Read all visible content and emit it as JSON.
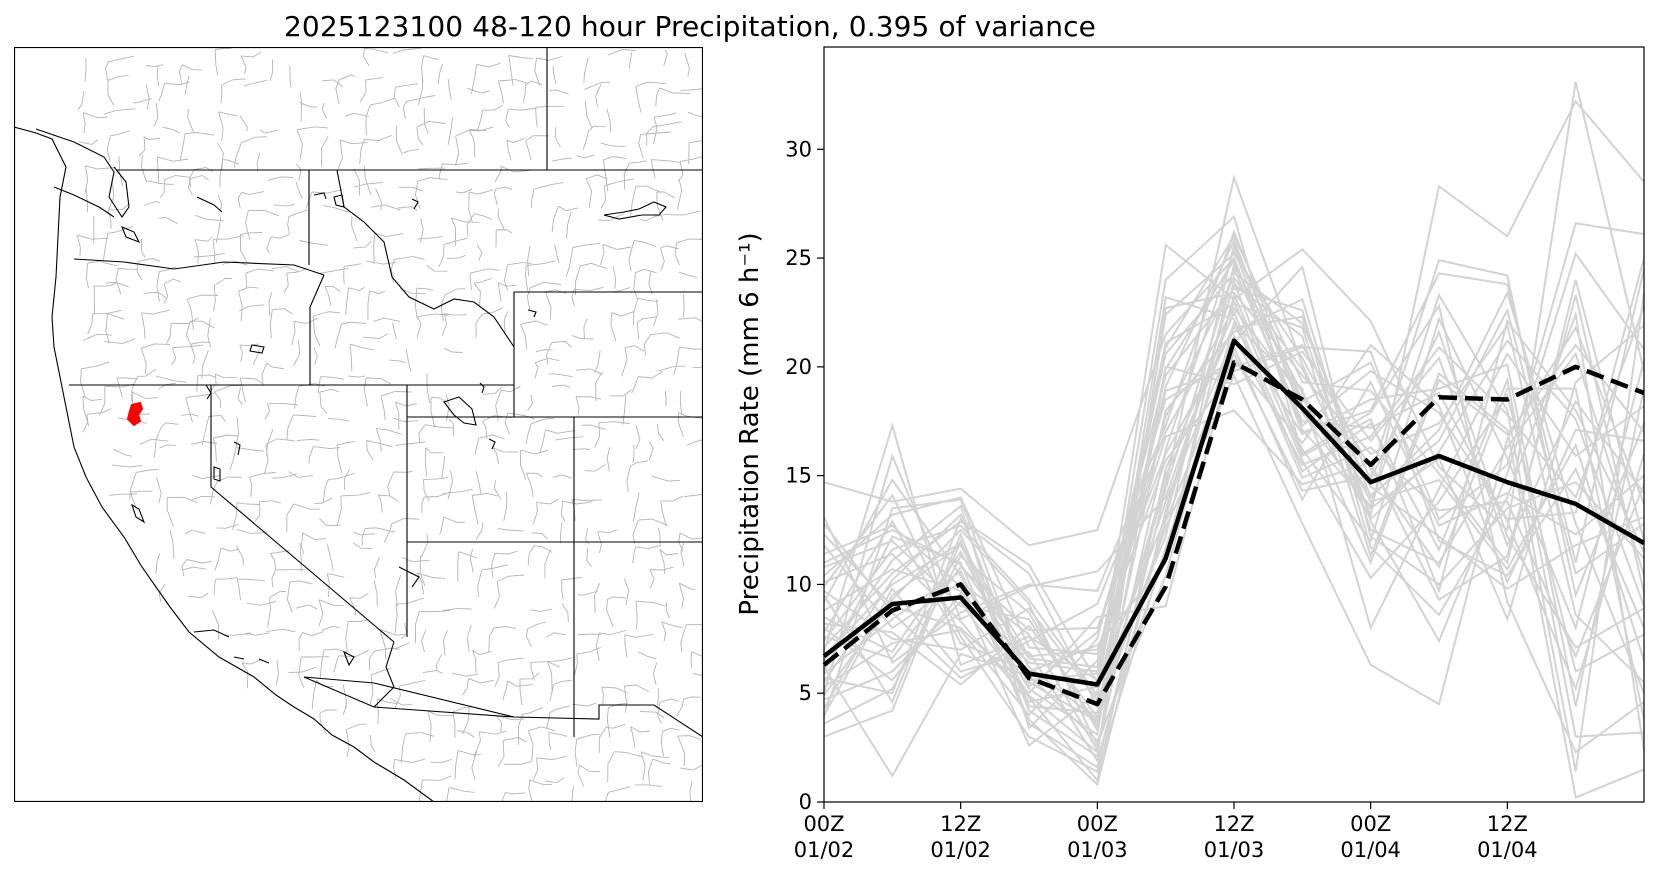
{
  "figure": {
    "title": "2025123100 48-120 hour Precipitation, 0.395 of variance"
  },
  "map": {
    "region": "Western United States",
    "highlight_color": "#ff0000",
    "state_line_color": "#000000",
    "basin_line_color": "#b4b4b4"
  },
  "chart_data": {
    "type": "line",
    "ylabel": "Precipitation Rate (mm 6 h⁻¹)",
    "ylim": [
      0,
      34.7
    ],
    "yticks": [
      0,
      5,
      10,
      15,
      20,
      25,
      30
    ],
    "x": [
      0,
      6,
      12,
      18,
      24,
      30,
      36,
      42,
      48,
      54,
      60,
      66,
      72
    ],
    "xlim": [
      0,
      72
    ],
    "xticks": [
      {
        "x": 0,
        "top": "00Z",
        "bottom": "01/02"
      },
      {
        "x": 12,
        "top": "12Z",
        "bottom": "01/02"
      },
      {
        "x": 24,
        "top": "00Z",
        "bottom": "01/03"
      },
      {
        "x": 36,
        "top": "12Z",
        "bottom": "01/03"
      },
      {
        "x": 48,
        "top": "00Z",
        "bottom": "01/04"
      },
      {
        "x": 60,
        "top": "12Z",
        "bottom": "01/04"
      }
    ],
    "grid": false,
    "series_style": {
      "ensemble_color": "#d3d3d3",
      "mean_color": "#000000",
      "dashed_color": "#000000"
    },
    "series": [
      {
        "style": "solid-thick",
        "values": [
          6.7,
          9.1,
          9.4,
          5.9,
          5.4,
          11.2,
          21.2,
          18.1,
          14.7,
          15.9,
          14.7,
          13.7,
          11.9
        ]
      },
      {
        "style": "dashed-thick",
        "values": [
          6.3,
          8.8,
          10.0,
          5.7,
          4.5,
          9.9,
          20.2,
          18.5,
          15.5,
          18.6,
          18.5,
          20.0,
          18.8
        ]
      }
    ],
    "ensemble": [
      [
        4.0,
        9.5,
        11.8,
        6.2,
        3.8,
        14.6,
        28.7,
        20.1,
        13.2,
        28.3,
        26.0,
        32.2,
        28.5
      ],
      [
        6.9,
        17.3,
        6.3,
        7.6,
        5.6,
        25.6,
        23.1,
        25.4,
        22.1,
        15.4,
        12.5,
        33.1,
        19.8
      ],
      [
        14.7,
        13.8,
        14.4,
        11.8,
        12.5,
        21.5,
        25.0,
        17.0,
        18.0,
        24.3,
        23.8,
        11.0,
        24.5
      ],
      [
        13.1,
        6.4,
        8.7,
        10.0,
        9.7,
        17.3,
        26.2,
        18.4,
        20.2,
        13.0,
        15.5,
        26.6,
        26.1
      ],
      [
        3.0,
        4.2,
        12.0,
        4.2,
        2.1,
        22.7,
        23.4,
        19.6,
        16.0,
        17.4,
        21.9,
        8.6,
        5.5
      ],
      [
        9.9,
        14.1,
        7.6,
        3.0,
        1.4,
        11.7,
        21.1,
        24.6,
        12.2,
        10.0,
        13.5,
        14.7,
        11.2
      ],
      [
        5.5,
        10.2,
        13.2,
        5.3,
        7.8,
        18.5,
        20.3,
        16.5,
        21.0,
        18.2,
        10.1,
        17.1,
        16.6
      ],
      [
        8.2,
        7.8,
        5.4,
        8.1,
        3.9,
        12.6,
        19.6,
        12.8,
        6.3,
        4.5,
        16.7,
        21.8,
        13.7
      ],
      [
        11.0,
        12.5,
        10.9,
        6.6,
        6.2,
        20.6,
        24.3,
        22.0,
        14.8,
        21.6,
        12.2,
        7.1,
        8.9
      ],
      [
        4.7,
        6.0,
        9.2,
        4.8,
        1.0,
        15.3,
        22.5,
        15.2,
        17.4,
        11.6,
        19.4,
        3.0,
        3.2
      ],
      [
        7.4,
        11.6,
        12.7,
        9.3,
        4.9,
        19.1,
        25.8,
        17.9,
        13.5,
        15.8,
        8.4,
        19.3,
        21.9
      ],
      [
        12.3,
        9.0,
        8.0,
        5.0,
        8.5,
        9.0,
        20.9,
        13.9,
        19.3,
        12.7,
        14.2,
        12.3,
        15.0
      ],
      [
        5.9,
        8.4,
        10.6,
        3.8,
        0.8,
        13.4,
        23.8,
        21.4,
        11.3,
        19.7,
        17.1,
        0.2,
        1.5
      ],
      [
        10.4,
        13.2,
        14.0,
        7.1,
        6.8,
        16.8,
        18.0,
        14.6,
        15.6,
        9.3,
        11.3,
        23.3,
        9.6
      ],
      [
        6.2,
        1.2,
        6.8,
        5.8,
        2.8,
        10.4,
        22.0,
        19.0,
        8.0,
        14.4,
        20.6,
        15.9,
        18.2
      ],
      [
        8.8,
        10.7,
        9.7,
        2.6,
        5.0,
        24.0,
        26.9,
        16.0,
        17.9,
        22.8,
        9.2,
        2.3,
        4.6
      ],
      [
        3.6,
        5.2,
        11.3,
        8.7,
        3.3,
        18.0,
        21.6,
        23.1,
        12.9,
        7.4,
        15.1,
        25.2,
        20.8
      ],
      [
        7.8,
        12.9,
        7.3,
        6.0,
        7.2,
        11.0,
        24.7,
        18.8,
        14.1,
        16.6,
        22.6,
        10.5,
        12.8
      ],
      [
        9.5,
        4.6,
        12.3,
        4.4,
        4.1,
        20.0,
        19.2,
        20.7,
        16.6,
        20.4,
        11.8,
        18.4,
        14.2
      ],
      [
        5.0,
        15.9,
        8.4,
        9.9,
        10.6,
        14.0,
        23.0,
        15.7,
        10.3,
        13.8,
        18.7,
        6.0,
        7.7
      ],
      [
        11.8,
        8.0,
        10.1,
        7.7,
        2.4,
        16.2,
        25.4,
        17.3,
        19.8,
        17.9,
        13.0,
        13.3,
        25.0
      ],
      [
        6.5,
        11.1,
        13.6,
        3.4,
        6.5,
        21.1,
        22.9,
        21.8,
        12.5,
        11.0,
        16.3,
        20.6,
        10.4
      ],
      [
        4.3,
        9.8,
        6.0,
        6.9,
        1.9,
        12.9,
        20.6,
        14.3,
        15.0,
        24.9,
        24.2,
        9.5,
        17.4
      ],
      [
        8.5,
        6.9,
        11.5,
        5.6,
        5.9,
        17.7,
        24.1,
        19.9,
        13.8,
        14.8,
        10.7,
        16.4,
        6.5
      ],
      [
        10.8,
        12.0,
        9.0,
        8.4,
        3.5,
        15.0,
        21.9,
        16.9,
        18.5,
        19.0,
        20.1,
        4.4,
        19.0
      ],
      [
        5.3,
        7.3,
        7.9,
        4.0,
        7.5,
        19.6,
        23.6,
        22.6,
        11.7,
        8.6,
        14.0,
        22.4,
        2.4
      ],
      [
        7.1,
        10.5,
        12.9,
        10.5,
        4.4,
        13.8,
        21.4,
        15.5,
        16.8,
        20.9,
        17.8,
        14.0,
        22.8
      ],
      [
        9.2,
        14.8,
        10.4,
        5.2,
        3.1,
        22.4,
        25.2,
        20.4,
        14.5,
        12.2,
        9.8,
        11.8,
        13.1
      ],
      [
        12.8,
        8.7,
        5.7,
        7.4,
        9.1,
        17.0,
        22.7,
        18.6,
        13.0,
        16.1,
        21.2,
        17.6,
        9.0
      ],
      [
        6.0,
        12.2,
        11.0,
        3.6,
        1.6,
        14.4,
        24.5,
        17.5,
        17.2,
        18.8,
        12.9,
        5.2,
        16.0
      ],
      [
        8.0,
        5.6,
        9.6,
        6.4,
        6.0,
        18.9,
        20.0,
        21.0,
        15.3,
        10.8,
        19.0,
        19.0,
        3.8
      ],
      [
        4.9,
        9.3,
        12.5,
        9.1,
        2.6,
        11.4,
        23.3,
        16.2,
        12.0,
        22.2,
        15.8,
        8.0,
        20.3
      ],
      [
        10.1,
        11.4,
        8.3,
        4.6,
        5.3,
        20.9,
        26.0,
        19.3,
        18.9,
        15.1,
        11.0,
        24.0,
        12.0
      ],
      [
        7.6,
        6.6,
        10.8,
        7.9,
        8.0,
        16.0,
        21.8,
        22.3,
        14.0,
        17.1,
        23.4,
        12.8,
        5.0
      ],
      [
        3.9,
        13.5,
        13.9,
        5.5,
        3.7,
        23.2,
        22.2,
        14.9,
        16.3,
        13.4,
        13.8,
        6.7,
        14.6
      ],
      [
        9.7,
        7.5,
        7.0,
        8.9,
        4.7,
        12.2,
        25.6,
        18.2,
        11.0,
        19.4,
        16.9,
        21.0,
        17.0
      ],
      [
        6.7,
        10.0,
        11.9,
        6.7,
        7.0,
        15.7,
        19.8,
        20.9,
        20.7,
        12.0,
        10.4,
        15.3,
        8.0
      ],
      [
        11.4,
        12.7,
        9.9,
        4.9,
        2.3,
        19.9,
        24.9,
        17.1,
        13.6,
        23.3,
        18.0,
        1.4,
        23.4
      ],
      [
        5.7,
        5.0,
        13.0,
        10.9,
        5.5,
        13.1,
        23.9,
        15.9,
        17.6,
        9.7,
        22.1,
        18.0,
        11.5
      ]
    ]
  }
}
